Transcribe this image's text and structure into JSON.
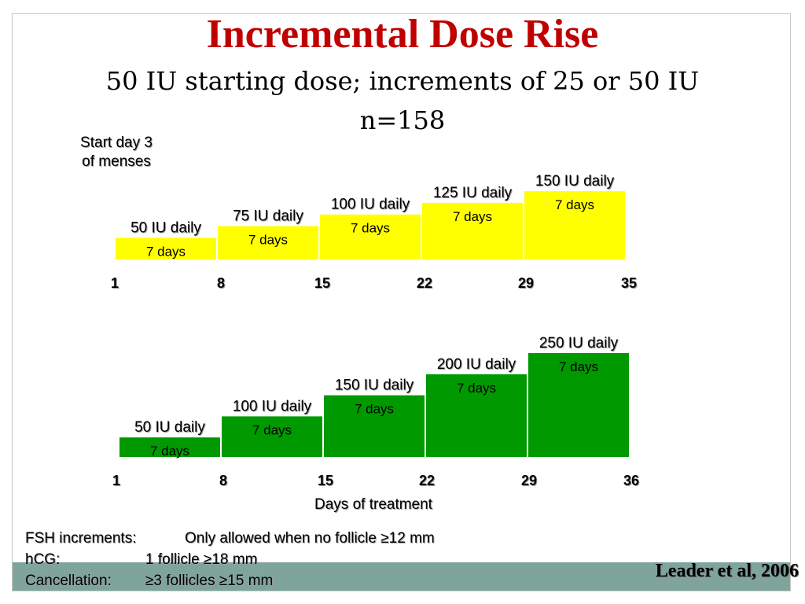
{
  "title": "Incremental Dose Rise",
  "subtitle": "50 IU starting dose; increments of 25 or 50 IU",
  "n_label": "n=158",
  "start_label": "Start day 3 of menses",
  "chart_data": [
    {
      "type": "bar",
      "color": "#ffff00",
      "x_ticks": [
        "1",
        "8",
        "15",
        "22",
        "29",
        "35"
      ],
      "bars": [
        {
          "label": "50 IU daily",
          "dose": 50,
          "duration": "7 days"
        },
        {
          "label": "75 IU daily",
          "dose": 75,
          "duration": "7 days"
        },
        {
          "label": "100 IU daily",
          "dose": 100,
          "duration": "7 days"
        },
        {
          "label": "125 IU daily",
          "dose": 125,
          "duration": "7 days"
        },
        {
          "label": "150 IU daily",
          "dose": 150,
          "duration": "7 days"
        }
      ]
    },
    {
      "type": "bar",
      "color": "#009900",
      "x_ticks": [
        "1",
        "8",
        "15",
        "22",
        "29",
        "36"
      ],
      "xlabel": "Days of treatment",
      "bars": [
        {
          "label": "50 IU daily",
          "dose": 50,
          "duration": "7 days"
        },
        {
          "label": "100 IU daily",
          "dose": 100,
          "duration": "7 days"
        },
        {
          "label": "150 IU daily",
          "dose": 150,
          "duration": "7 days"
        },
        {
          "label": "200 IU daily",
          "dose": 200,
          "duration": "7 days"
        },
        {
          "label": "250 IU daily",
          "dose": 250,
          "duration": "7 days"
        }
      ]
    }
  ],
  "notes": [
    {
      "label": "FSH increments:",
      "value": "Only allowed when no follicle  ≥12 mm"
    },
    {
      "label": "hCG:",
      "value": "1 follicle ≥18 mm"
    },
    {
      "label": "Cancellation:",
      "value": "≥3 follicles ≥15 mm"
    }
  ],
  "citation": "Leader et al, 2006"
}
